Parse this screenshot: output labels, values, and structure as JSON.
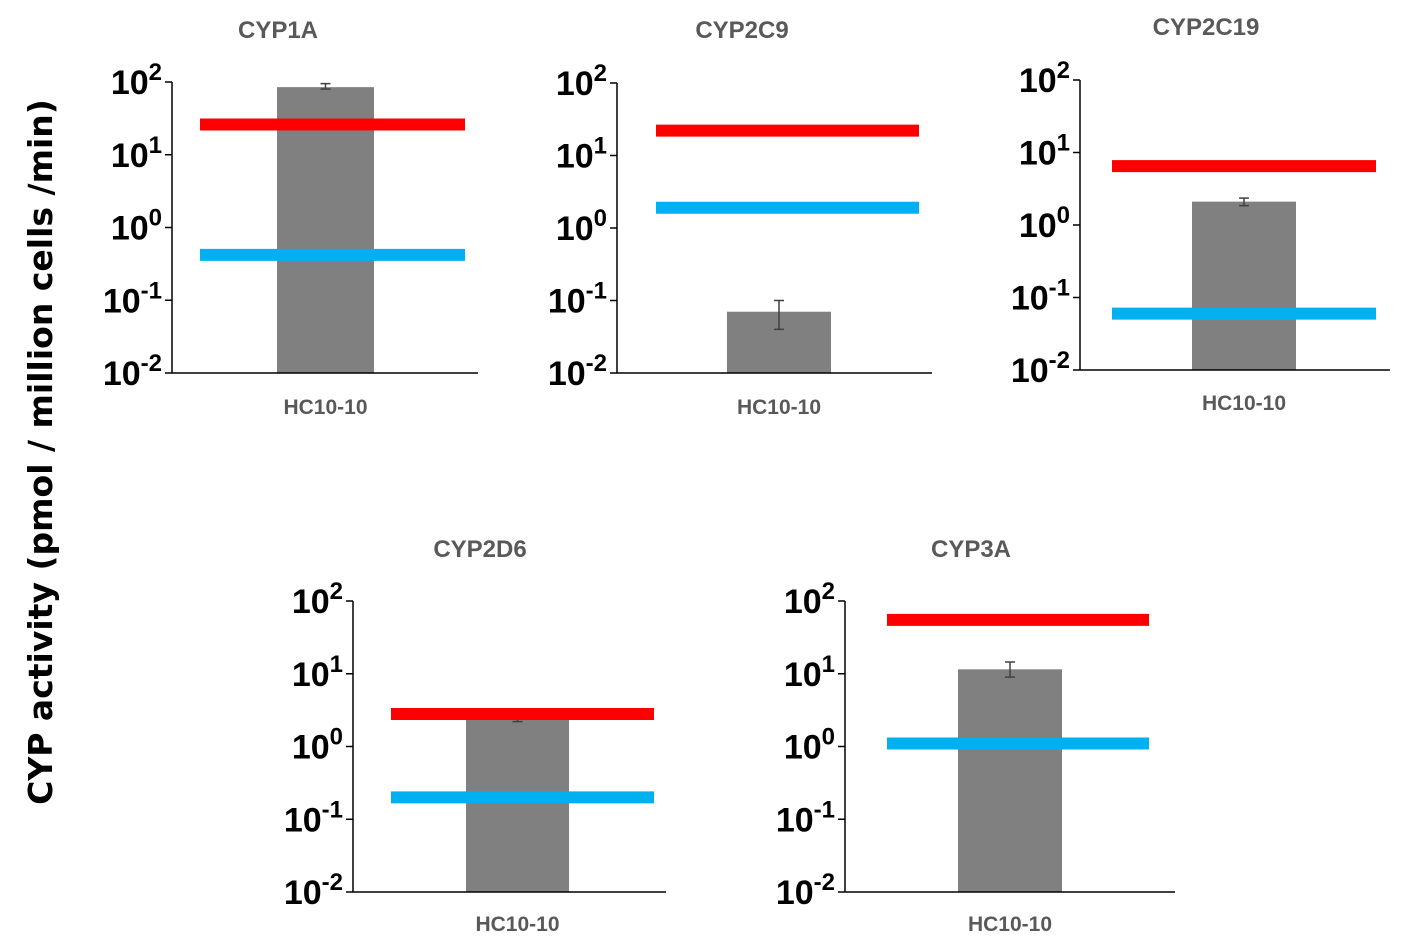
{
  "ylabel": "CYP activity (pmol / million cells /min)",
  "colors": {
    "bar": "#808080",
    "red_line": "#ff0000",
    "blue_line": "#00b0f0",
    "axis": "#000000",
    "title": "#595959",
    "category": "#595959",
    "errorbar": "#404040"
  },
  "chart_data": [
    {
      "type": "bar",
      "title": "CYP1A",
      "categories": [
        "HC10-10"
      ],
      "values": [
        85
      ],
      "error": [
        [
          80,
          95
        ]
      ],
      "yscale": "log",
      "ylim": [
        0.01,
        100
      ],
      "yticks": [
        "10",
        "10",
        "10",
        "10",
        "10"
      ],
      "yexp": [
        "-2",
        "-1",
        "0",
        "1",
        "2"
      ],
      "ref_lines": [
        {
          "color": "red",
          "value": 26
        },
        {
          "color": "blue",
          "value": 0.42
        }
      ]
    },
    {
      "type": "bar",
      "title": "CYP2C9",
      "categories": [
        "HC10-10"
      ],
      "values": [
        0.07
      ],
      "error": [
        [
          0.04,
          0.1
        ]
      ],
      "yscale": "log",
      "ylim": [
        0.01,
        100
      ],
      "yticks": [
        "10",
        "10",
        "10",
        "10",
        "10"
      ],
      "yexp": [
        "-2",
        "-1",
        "0",
        "1",
        "2"
      ],
      "ref_lines": [
        {
          "color": "red",
          "value": 22
        },
        {
          "color": "blue",
          "value": 1.9
        }
      ]
    },
    {
      "type": "bar",
      "title": "CYP2C19",
      "categories": [
        "HC10-10"
      ],
      "values": [
        2.1
      ],
      "error": [
        [
          1.85,
          2.35
        ]
      ],
      "yscale": "log",
      "ylim": [
        0.01,
        100
      ],
      "yticks": [
        "10",
        "10",
        "10",
        "10",
        "10"
      ],
      "yexp": [
        "-2",
        "-1",
        "0",
        "1",
        "2"
      ],
      "ref_lines": [
        {
          "color": "red",
          "value": 6.5
        },
        {
          "color": "blue",
          "value": 0.06
        }
      ]
    },
    {
      "type": "bar",
      "title": "CYP2D6",
      "categories": [
        "HC10-10"
      ],
      "values": [
        2.6
      ],
      "error": [
        [
          2.2,
          3.1
        ]
      ],
      "yscale": "log",
      "ylim": [
        0.01,
        100
      ],
      "yticks": [
        "10",
        "10",
        "10",
        "10",
        "10"
      ],
      "yexp": [
        "-2",
        "-1",
        "0",
        "1",
        "2"
      ],
      "ref_lines": [
        {
          "color": "red",
          "value": 2.8
        },
        {
          "color": "blue",
          "value": 0.2
        }
      ]
    },
    {
      "type": "bar",
      "title": "CYP3A",
      "categories": [
        "HC10-10"
      ],
      "values": [
        11.5
      ],
      "error": [
        [
          9,
          14.5
        ]
      ],
      "yscale": "log",
      "ylim": [
        0.01,
        100
      ],
      "yticks": [
        "10",
        "10",
        "10",
        "10",
        "10"
      ],
      "yexp": [
        "-2",
        "-1",
        "0",
        "1",
        "2"
      ],
      "ref_lines": [
        {
          "color": "red",
          "value": 55
        },
        {
          "color": "blue",
          "value": 1.1
        }
      ]
    }
  ]
}
